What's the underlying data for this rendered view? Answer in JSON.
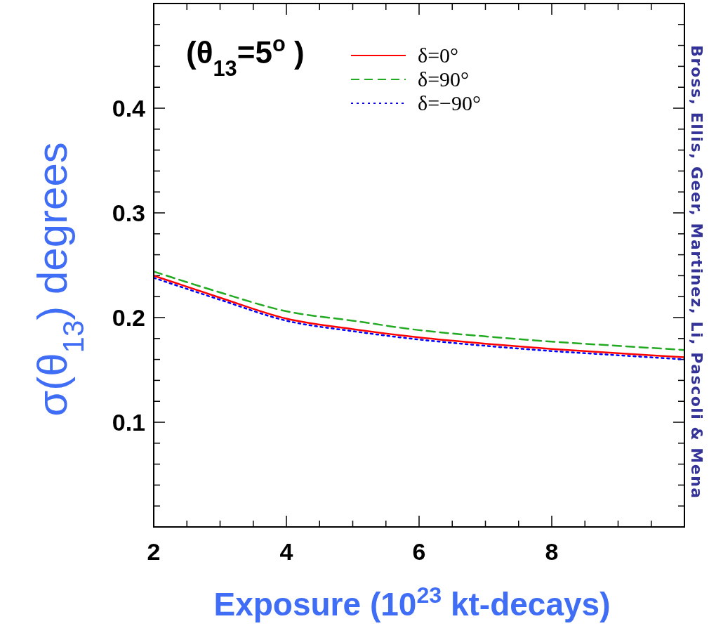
{
  "chart_data": {
    "type": "line",
    "xlabel": "Exposure  (10$^{23}$ kt-decays)",
    "ylabel": "σ(θ$_{13}$)  degrees",
    "annotations": [
      "(θ$_{13}$=5$^{o}$ )",
      "Bross, Ellis, Geer, Martinez, Li, Pascoli & Mena"
    ],
    "x": [
      2,
      3,
      4,
      5,
      6,
      7,
      8,
      9,
      10
    ],
    "series": [
      {
        "name": "δ=0°",
        "color": "#ff0000",
        "line_style": "solid",
        "values": [
          0.24,
          0.219,
          0.199,
          0.189,
          0.181,
          0.175,
          0.17,
          0.166,
          0.162
        ]
      },
      {
        "name": "δ=90°",
        "color": "#22aa22",
        "line_style": "dashed",
        "values": [
          0.244,
          0.224,
          0.206,
          0.197,
          0.188,
          0.182,
          0.177,
          0.173,
          0.169
        ]
      },
      {
        "name": "δ=−90°",
        "color": "#0000ff",
        "line_style": "dotted",
        "values": [
          0.238,
          0.217,
          0.197,
          0.187,
          0.179,
          0.173,
          0.168,
          0.164,
          0.16
        ]
      }
    ],
    "xlim": [
      2,
      10
    ],
    "xticks": [
      2,
      {
        "value": 2.5,
        "label": null
      },
      {
        "value": 3,
        "label": null
      },
      {
        "value": 3.5,
        "label": null
      },
      4,
      {
        "value": 4.5,
        "label": null
      },
      {
        "value": 5,
        "label": null
      },
      {
        "value": 5.5,
        "label": null
      },
      6,
      {
        "value": 6.5,
        "label": null
      },
      {
        "value": 7,
        "label": null
      },
      {
        "value": 7.5,
        "label": null
      },
      8,
      {
        "value": 8.5,
        "label": null
      },
      {
        "value": 9,
        "label": null
      },
      {
        "value": 9.5,
        "label": null
      }
    ],
    "ylim": [
      0,
      0.5
    ],
    "yticks": [
      {
        "value": 0.02,
        "label": null
      },
      {
        "value": 0.04,
        "label": null
      },
      {
        "value": 0.06,
        "label": null
      },
      {
        "value": 0.08,
        "label": null
      },
      0.1,
      {
        "value": 0.12,
        "label": null
      },
      {
        "value": 0.14,
        "label": null
      },
      {
        "value": 0.16,
        "label": null
      },
      {
        "value": 0.18,
        "label": null
      },
      0.2,
      {
        "value": 0.22,
        "label": null
      },
      {
        "value": 0.24,
        "label": null
      },
      {
        "value": 0.26,
        "label": null
      },
      {
        "value": 0.28,
        "label": null
      },
      0.3,
      {
        "value": 0.32,
        "label": null
      },
      {
        "value": 0.34,
        "label": null
      },
      {
        "value": 0.36,
        "label": null
      },
      {
        "value": 0.38,
        "label": null
      },
      0.4,
      {
        "value": 0.42,
        "label": null
      },
      {
        "value": 0.44,
        "label": null
      },
      {
        "value": 0.46,
        "label": null
      },
      {
        "value": 0.48,
        "label": null
      }
    ],
    "grid": false,
    "legend": "top right",
    "marker": "none"
  }
}
